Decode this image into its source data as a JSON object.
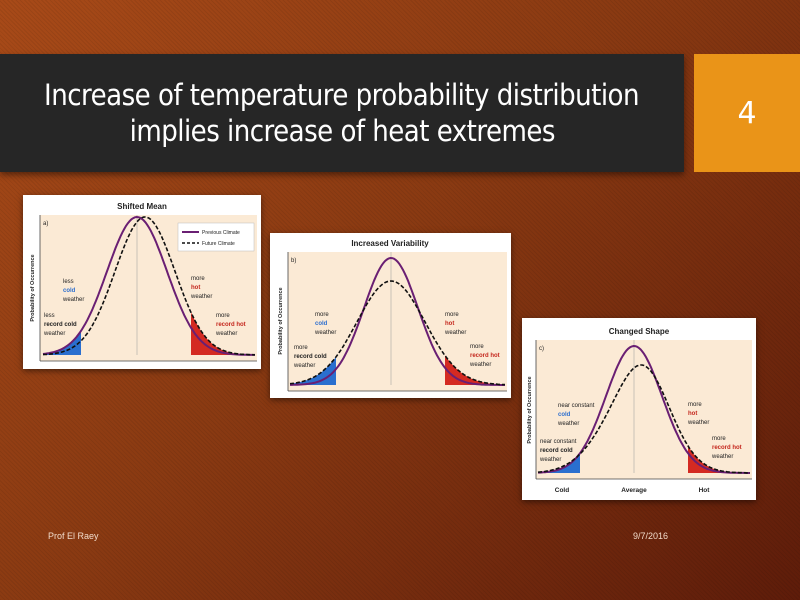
{
  "slide": {
    "title_line1": "Increase of temperature probability distribution",
    "title_line2": "implies increase of heat extremes",
    "number": "4",
    "footer_left": "Prof El Raey",
    "footer_date": "9/7/2016"
  },
  "figures": {
    "y_axis_label": "Probability of Occurrence",
    "legend_previous": "Previous Climate",
    "legend_future": "Future Climate",
    "panel_a": {
      "title": "Shifted Mean",
      "tag": "a)",
      "cold_1": "less",
      "cold_2": "cold",
      "cold_3": "weather",
      "rcold_1": "less",
      "rcold_2": "record cold",
      "rcold_3": "weather",
      "hot_1": "more",
      "hot_2": "hot",
      "hot_3": "weather",
      "rhot_1": "more",
      "rhot_2": "record hot",
      "rhot_3": "weather"
    },
    "panel_b": {
      "title": "Increased Variability",
      "tag": "b)",
      "cold_1": "more",
      "cold_2": "cold",
      "cold_3": "weather",
      "rcold_1": "more",
      "rcold_2": "record cold",
      "rcold_3": "weather",
      "hot_1": "more",
      "hot_2": "hot",
      "hot_3": "weather",
      "rhot_1": "more",
      "rhot_2": "record hot",
      "rhot_3": "weather"
    },
    "panel_c": {
      "title": "Changed Shape",
      "tag": "c)",
      "cold_1": "near constant",
      "cold_2": "cold",
      "cold_3": "weather",
      "rcold_1": "near constant",
      "rcold_2": "record cold",
      "rcold_3": "weather",
      "hot_1": "more",
      "hot_2": "hot",
      "hot_3": "weather",
      "rhot_1": "more",
      "rhot_2": "record hot",
      "rhot_3": "weather",
      "x_cold": "Cold",
      "x_average": "Average",
      "x_hot": "Hot"
    },
    "colors": {
      "previous_curve": "#6a1f73",
      "future_curve": "#111111",
      "cold_tail": "#2a6fcf",
      "hot_tail": "#d42a22",
      "plot_bg": "#fbead5"
    }
  }
}
